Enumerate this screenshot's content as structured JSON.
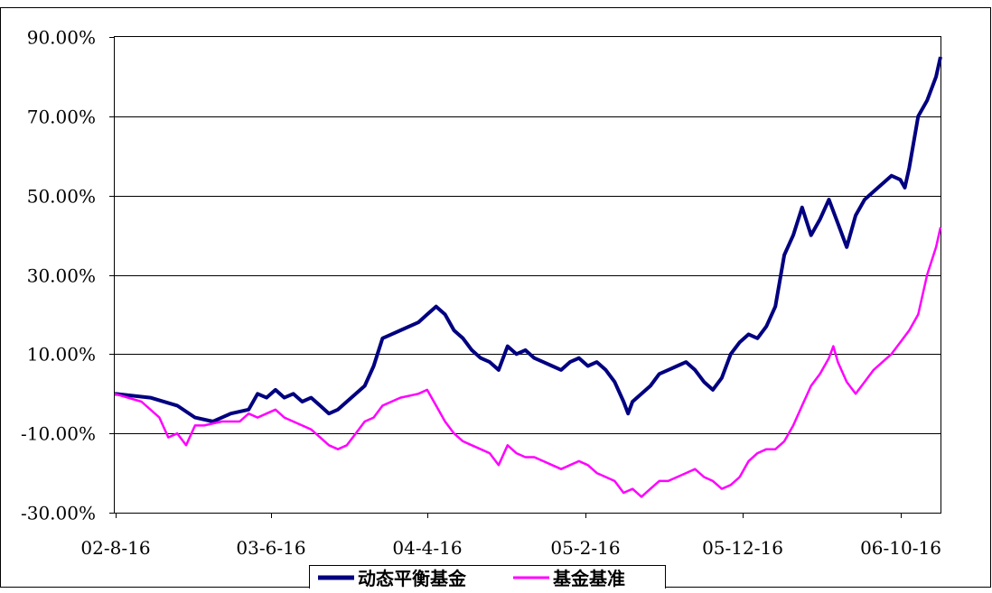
{
  "chart_data": {
    "type": "line",
    "title": "",
    "xlabel": "",
    "ylabel": "",
    "x_tick_labels": [
      "02-8-16",
      "03-6-16",
      "04-4-16",
      "05-2-16",
      "05-12-16",
      "06-10-16"
    ],
    "y_tick_labels": [
      "90.00%",
      "70.00%",
      "50.00%",
      "30.00%",
      "10.00%",
      "-10.00%",
      "-30.00%"
    ],
    "ylim": [
      -30,
      90
    ],
    "y_unit": "%",
    "grid": "horizontal",
    "legend_position": "bottom",
    "series": [
      {
        "name": "动态平衡基金",
        "color": "#000080",
        "points": [
          [
            0,
            0
          ],
          [
            4,
            -1
          ],
          [
            7,
            -3
          ],
          [
            9,
            -6
          ],
          [
            11,
            -7
          ],
          [
            12,
            -6
          ],
          [
            13,
            -5
          ],
          [
            15,
            -4
          ],
          [
            16,
            0
          ],
          [
            17,
            -1
          ],
          [
            18,
            1
          ],
          [
            19,
            -1
          ],
          [
            20,
            0
          ],
          [
            21,
            -2
          ],
          [
            22,
            -1
          ],
          [
            23,
            -3
          ],
          [
            24,
            -5
          ],
          [
            25,
            -4
          ],
          [
            26,
            -2
          ],
          [
            28,
            2
          ],
          [
            29,
            7
          ],
          [
            30,
            14
          ],
          [
            31,
            15
          ],
          [
            32,
            16
          ],
          [
            34,
            18
          ],
          [
            35,
            20
          ],
          [
            36,
            22
          ],
          [
            37,
            20
          ],
          [
            38,
            16
          ],
          [
            39,
            14
          ],
          [
            40,
            11
          ],
          [
            41,
            9
          ],
          [
            42,
            8
          ],
          [
            43,
            6
          ],
          [
            44,
            12
          ],
          [
            45,
            10
          ],
          [
            46,
            11
          ],
          [
            47,
            9
          ],
          [
            48,
            8
          ],
          [
            49,
            7
          ],
          [
            50,
            6
          ],
          [
            51,
            8
          ],
          [
            52,
            9
          ],
          [
            53,
            7
          ],
          [
            54,
            8
          ],
          [
            55,
            6
          ],
          [
            56,
            3
          ],
          [
            57,
            -2
          ],
          [
            57.5,
            -5
          ],
          [
            58,
            -2
          ],
          [
            59,
            0
          ],
          [
            60,
            2
          ],
          [
            61,
            5
          ],
          [
            62,
            6
          ],
          [
            63,
            7
          ],
          [
            64,
            8
          ],
          [
            65,
            6
          ],
          [
            66,
            3
          ],
          [
            67,
            1
          ],
          [
            68,
            4
          ],
          [
            69,
            10
          ],
          [
            70,
            13
          ],
          [
            71,
            15
          ],
          [
            72,
            14
          ],
          [
            73,
            17
          ],
          [
            74,
            22
          ],
          [
            75,
            35
          ],
          [
            76,
            40
          ],
          [
            77,
            47
          ],
          [
            78,
            40
          ],
          [
            79,
            44
          ],
          [
            80,
            49
          ],
          [
            81,
            43
          ],
          [
            82,
            37
          ],
          [
            83,
            45
          ],
          [
            84,
            49
          ],
          [
            85,
            51
          ],
          [
            86,
            53
          ],
          [
            87,
            55
          ],
          [
            88,
            54
          ],
          [
            88.5,
            52
          ],
          [
            89,
            57
          ],
          [
            90,
            70
          ],
          [
            91,
            74
          ],
          [
            92,
            80
          ],
          [
            92.5,
            85
          ]
        ]
      },
      {
        "name": "基金基准",
        "color": "#ff00ff",
        "points": [
          [
            0,
            0
          ],
          [
            3,
            -2
          ],
          [
            5,
            -6
          ],
          [
            6,
            -11
          ],
          [
            7,
            -10
          ],
          [
            8,
            -13
          ],
          [
            9,
            -8
          ],
          [
            10,
            -8
          ],
          [
            12,
            -7
          ],
          [
            14,
            -7
          ],
          [
            15,
            -5
          ],
          [
            16,
            -6
          ],
          [
            17,
            -5
          ],
          [
            18,
            -4
          ],
          [
            19,
            -6
          ],
          [
            20,
            -7
          ],
          [
            21,
            -8
          ],
          [
            22,
            -9
          ],
          [
            23,
            -11
          ],
          [
            24,
            -13
          ],
          [
            25,
            -14
          ],
          [
            26,
            -13
          ],
          [
            27,
            -10
          ],
          [
            28,
            -7
          ],
          [
            29,
            -6
          ],
          [
            30,
            -3
          ],
          [
            32,
            -1
          ],
          [
            34,
            0
          ],
          [
            35,
            1
          ],
          [
            36,
            -3
          ],
          [
            37,
            -7
          ],
          [
            38,
            -10
          ],
          [
            39,
            -12
          ],
          [
            40,
            -13
          ],
          [
            41,
            -14
          ],
          [
            42,
            -15
          ],
          [
            43,
            -18
          ],
          [
            44,
            -13
          ],
          [
            45,
            -15
          ],
          [
            46,
            -16
          ],
          [
            47,
            -16
          ],
          [
            48,
            -17
          ],
          [
            49,
            -18
          ],
          [
            50,
            -19
          ],
          [
            51,
            -18
          ],
          [
            52,
            -17
          ],
          [
            53,
            -18
          ],
          [
            54,
            -20
          ],
          [
            55,
            -21
          ],
          [
            56,
            -22
          ],
          [
            57,
            -25
          ],
          [
            58,
            -24
          ],
          [
            59,
            -26
          ],
          [
            60,
            -24
          ],
          [
            61,
            -22
          ],
          [
            62,
            -22
          ],
          [
            63,
            -21
          ],
          [
            64,
            -20
          ],
          [
            65,
            -19
          ],
          [
            66,
            -21
          ],
          [
            67,
            -22
          ],
          [
            68,
            -24
          ],
          [
            69,
            -23
          ],
          [
            70,
            -21
          ],
          [
            71,
            -17
          ],
          [
            72,
            -15
          ],
          [
            73,
            -14
          ],
          [
            74,
            -14
          ],
          [
            75,
            -12
          ],
          [
            76,
            -8
          ],
          [
            77,
            -3
          ],
          [
            78,
            2
          ],
          [
            79,
            5
          ],
          [
            80,
            9
          ],
          [
            80.5,
            12
          ],
          [
            81,
            8
          ],
          [
            82,
            3
          ],
          [
            83,
            0
          ],
          [
            84,
            3
          ],
          [
            85,
            6
          ],
          [
            86,
            8
          ],
          [
            87,
            10
          ],
          [
            88,
            13
          ],
          [
            89,
            16
          ],
          [
            90,
            20
          ],
          [
            91,
            30
          ],
          [
            92,
            37
          ],
          [
            92.5,
            42
          ]
        ]
      }
    ]
  }
}
